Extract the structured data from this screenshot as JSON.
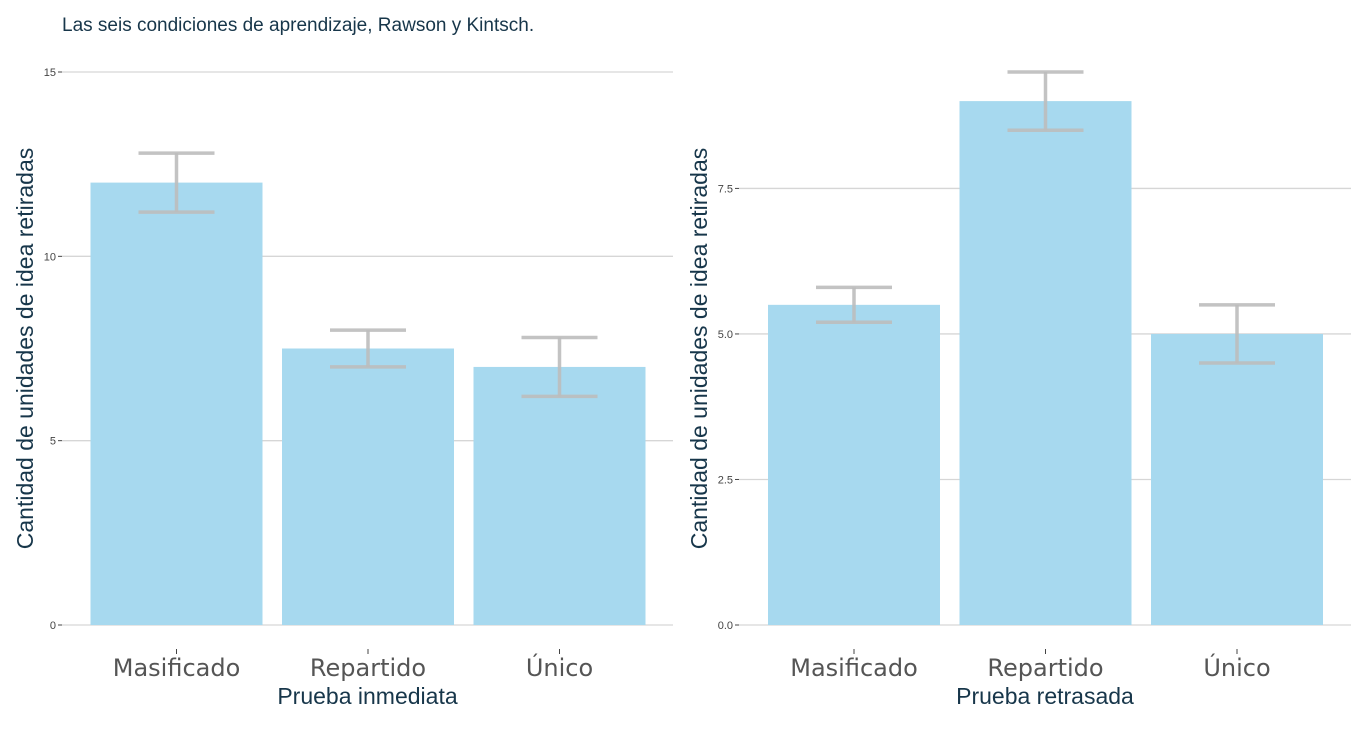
{
  "title": "Las seis condiciones de aprendizaje, Rawson y Kintsch.",
  "colors": {
    "bar": "#a7d9ef",
    "error_bar": "#bdbdbd",
    "grid": "#d6d6d6",
    "title": "#17364a",
    "tick_text": "#444444"
  },
  "chart_data": [
    {
      "type": "bar",
      "xlabel": "Prueba inmediata",
      "ylabel": "Cantidad de unidades de idea retiradas",
      "categories": [
        "Masificado",
        "Repartido",
        "Único"
      ],
      "values": [
        12,
        7.5,
        7
      ],
      "error_low": [
        11.2,
        7,
        6.2
      ],
      "error_high": [
        12.8,
        8,
        7.8
      ],
      "ylim": [
        0,
        15
      ],
      "yticks": [
        0,
        5,
        10,
        15
      ],
      "ytick_labels": [
        "0",
        "5",
        "10",
        "15"
      ],
      "grid": true
    },
    {
      "type": "bar",
      "xlabel": "Prueba retrasada",
      "ylabel": "Cantidad de unidades de idea retiradas",
      "categories": [
        "Masificado",
        "Repartido",
        "Único"
      ],
      "values": [
        5.5,
        9,
        5
      ],
      "error_low": [
        5.2,
        8.5,
        4.5
      ],
      "error_high": [
        5.8,
        9.5,
        5.5
      ],
      "ylim": [
        0,
        9.5
      ],
      "yticks": [
        0,
        2.5,
        5,
        7.5
      ],
      "ytick_labels": [
        "0.0",
        "2.5",
        "5.0",
        "7.5"
      ],
      "grid": true
    }
  ]
}
